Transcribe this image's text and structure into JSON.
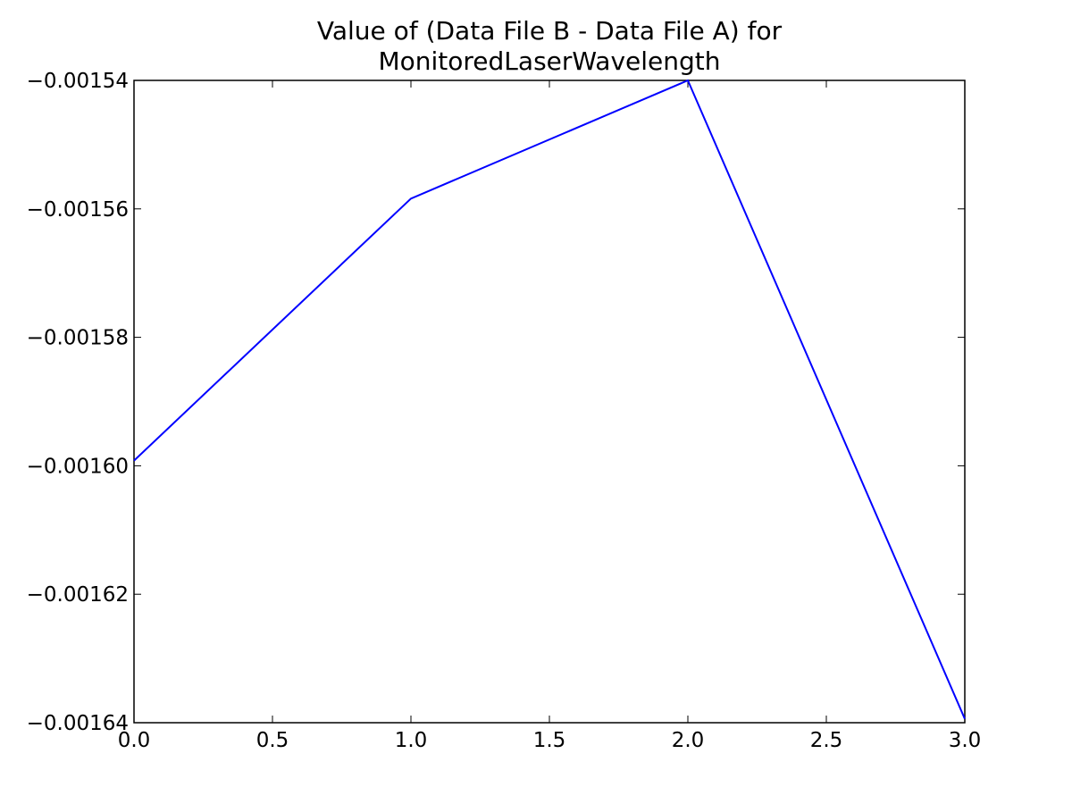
{
  "chart_data": {
    "type": "line",
    "title": "Value of (Data File B - Data File A) for\nMonitoredLaserWavelength",
    "x": [
      0,
      1,
      2,
      3
    ],
    "series": [
      {
        "name": "MonitoredLaserWavelength",
        "color": "#0000ff",
        "values": [
          -0.0015992,
          -0.0015584,
          -0.00154,
          -0.0016394
        ]
      }
    ],
    "xlim": [
      0,
      3
    ],
    "ylim": [
      -0.00164,
      -0.00154
    ],
    "xticks": [
      {
        "value": 0,
        "label": "0.0"
      },
      {
        "value": 0.5,
        "label": "0.5"
      },
      {
        "value": 1,
        "label": "1.0"
      },
      {
        "value": 1.5,
        "label": "1.5"
      },
      {
        "value": 2,
        "label": "2.0"
      },
      {
        "value": 2.5,
        "label": "2.5"
      },
      {
        "value": 3,
        "label": "3.0"
      }
    ],
    "yticks": [
      {
        "value": -0.00164,
        "label": "−0.00164"
      },
      {
        "value": -0.00162,
        "label": "−0.00162"
      },
      {
        "value": -0.0016,
        "label": "−0.00160"
      },
      {
        "value": -0.00158,
        "label": "−0.00158"
      },
      {
        "value": -0.00156,
        "label": "−0.00156"
      },
      {
        "value": -0.00154,
        "label": "−0.00154"
      }
    ],
    "grid": false
  }
}
